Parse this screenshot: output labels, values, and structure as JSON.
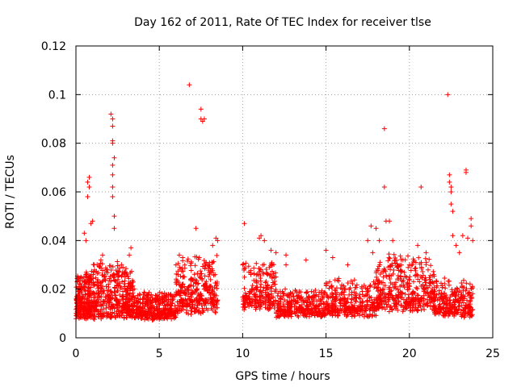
{
  "chart_data": {
    "type": "scatter",
    "title": "Day 162 of 2011, Rate Of TEC Index for receiver tlse",
    "xlabel": "GPS time / hours",
    "ylabel": "ROTI / TECUs",
    "xlim": [
      0,
      25
    ],
    "ylim": [
      0,
      0.12
    ],
    "x_ticks": [
      0,
      5,
      10,
      15,
      20,
      25
    ],
    "y_ticks": [
      0,
      0.02,
      0.04,
      0.06,
      0.08,
      0.1,
      0.12
    ],
    "x_tick_labels": [
      "0",
      "5",
      "10",
      "15",
      "20",
      "25"
    ],
    "y_tick_labels": [
      "0",
      "0.02",
      "0.04",
      "0.06",
      "0.08",
      "0.1",
      "0.12"
    ],
    "grid": true,
    "marker": "+",
    "color": "#ff0000",
    "gaps_hours": [
      [
        8.5,
        10.0
      ]
    ],
    "series": [
      {
        "name": "ROTI",
        "density_profile": [
          {
            "range": [
              0.0,
              1.0
            ],
            "base": 0.012,
            "spread": 0.01,
            "count": 260
          },
          {
            "range": [
              1.0,
              3.5
            ],
            "base": 0.013,
            "spread": 0.012,
            "count": 420
          },
          {
            "range": [
              3.5,
              6.0
            ],
            "base": 0.01,
            "spread": 0.006,
            "count": 360
          },
          {
            "range": [
              6.0,
              8.5
            ],
            "base": 0.015,
            "spread": 0.012,
            "count": 320
          },
          {
            "range": [
              10.0,
              12.0
            ],
            "base": 0.016,
            "spread": 0.01,
            "count": 220
          },
          {
            "range": [
              12.0,
              15.0
            ],
            "base": 0.011,
            "spread": 0.006,
            "count": 320
          },
          {
            "range": [
              15.0,
              18.0
            ],
            "base": 0.012,
            "spread": 0.008,
            "count": 300
          },
          {
            "range": [
              18.0,
              21.5
            ],
            "base": 0.016,
            "spread": 0.012,
            "count": 420
          },
          {
            "range": [
              21.5,
              23.8
            ],
            "base": 0.012,
            "spread": 0.008,
            "count": 260
          }
        ],
        "points": [
          [
            0.3,
            0.025
          ],
          [
            0.5,
            0.043
          ],
          [
            0.6,
            0.04
          ],
          [
            0.7,
            0.058
          ],
          [
            0.7,
            0.064
          ],
          [
            0.8,
            0.066
          ],
          [
            0.8,
            0.062
          ],
          [
            0.9,
            0.047
          ],
          [
            1.0,
            0.048
          ],
          [
            1.1,
            0.03
          ],
          [
            1.5,
            0.032
          ],
          [
            1.6,
            0.034
          ],
          [
            2.1,
            0.092
          ],
          [
            2.2,
            0.09
          ],
          [
            2.2,
            0.087
          ],
          [
            2.2,
            0.081
          ],
          [
            2.2,
            0.08
          ],
          [
            2.3,
            0.074
          ],
          [
            2.2,
            0.071
          ],
          [
            2.2,
            0.067
          ],
          [
            2.2,
            0.062
          ],
          [
            2.2,
            0.058
          ],
          [
            2.3,
            0.05
          ],
          [
            2.3,
            0.045
          ],
          [
            3.3,
            0.037
          ],
          [
            3.2,
            0.034
          ],
          [
            6.0,
            0.03
          ],
          [
            6.2,
            0.034
          ],
          [
            6.4,
            0.033
          ],
          [
            6.8,
            0.104
          ],
          [
            7.2,
            0.045
          ],
          [
            7.5,
            0.094
          ],
          [
            7.5,
            0.09
          ],
          [
            7.6,
            0.089
          ],
          [
            7.7,
            0.09
          ],
          [
            7.4,
            0.033
          ],
          [
            8.0,
            0.03
          ],
          [
            8.2,
            0.038
          ],
          [
            8.4,
            0.041
          ],
          [
            8.5,
            0.04
          ],
          [
            10.1,
            0.047
          ],
          [
            10.0,
            0.03
          ],
          [
            11.0,
            0.041
          ],
          [
            11.1,
            0.042
          ],
          [
            11.3,
            0.04
          ],
          [
            11.7,
            0.036
          ],
          [
            12.0,
            0.035
          ],
          [
            12.6,
            0.034
          ],
          [
            12.6,
            0.03
          ],
          [
            13.8,
            0.032
          ],
          [
            15.0,
            0.036
          ],
          [
            15.4,
            0.033
          ],
          [
            16.3,
            0.03
          ],
          [
            17.5,
            0.04
          ],
          [
            17.7,
            0.046
          ],
          [
            17.8,
            0.035
          ],
          [
            18.0,
            0.045
          ],
          [
            18.2,
            0.04
          ],
          [
            18.5,
            0.086
          ],
          [
            18.5,
            0.062
          ],
          [
            18.6,
            0.048
          ],
          [
            18.8,
            0.048
          ],
          [
            19.0,
            0.04
          ],
          [
            20.0,
            0.03
          ],
          [
            20.7,
            0.062
          ],
          [
            20.5,
            0.038
          ],
          [
            21.0,
            0.035
          ],
          [
            22.3,
            0.1
          ],
          [
            22.4,
            0.067
          ],
          [
            22.4,
            0.064
          ],
          [
            22.5,
            0.062
          ],
          [
            22.5,
            0.06
          ],
          [
            22.5,
            0.055
          ],
          [
            22.6,
            0.052
          ],
          [
            22.6,
            0.042
          ],
          [
            22.8,
            0.038
          ],
          [
            23.4,
            0.069
          ],
          [
            23.4,
            0.068
          ],
          [
            23.2,
            0.042
          ],
          [
            23.5,
            0.041
          ],
          [
            23.7,
            0.049
          ],
          [
            23.7,
            0.046
          ],
          [
            23.8,
            0.04
          ],
          [
            23.0,
            0.035
          ]
        ]
      }
    ]
  }
}
